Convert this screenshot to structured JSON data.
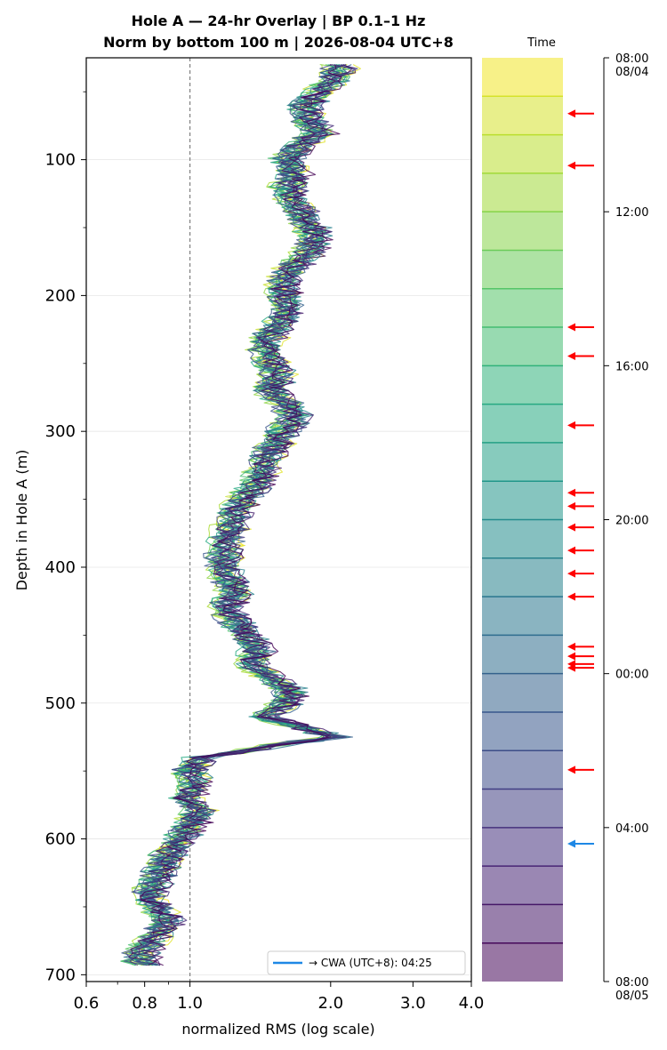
{
  "title": {
    "line1": "Hole A — 24-hr Overlay  |  BP 0.1–1 Hz",
    "line2": "Norm by bottom 100 m  |  2026-08-04 UTC+8"
  },
  "colors": {
    "reference_line": "#808080",
    "arrow": "#ff0000",
    "cwa_arrow": "#1e88e5",
    "colormap": [
      "#440154",
      "#472c7a",
      "#3b528b",
      "#2c728e",
      "#21918c",
      "#28ae80",
      "#5ec962",
      "#addc30",
      "#fde725"
    ]
  },
  "chart_data": [
    {
      "type": "line",
      "xlabel": "normalized RMS  (log scale)",
      "ylabel": "Depth in Hole A (m)",
      "xscale": "log",
      "xlim": [
        0.6,
        4.0
      ],
      "ylim": [
        705,
        25
      ],
      "xticks": [
        "0.6",
        "0.8",
        "1.0",
        "2.0",
        "3.0",
        "4.0"
      ],
      "xtick_values": [
        0.6,
        0.8,
        1.0,
        2.0,
        3.0,
        4.0
      ],
      "yticks": [
        "100",
        "200",
        "300",
        "400",
        "500",
        "600",
        "700"
      ],
      "ytick_values": [
        100,
        200,
        300,
        400,
        500,
        600,
        700
      ],
      "grid": "horizontal",
      "reference_line_x": 1.0,
      "series_count": 24,
      "color_by": "time",
      "median_profile": {
        "depth": [
          30,
          40,
          50,
          60,
          70,
          80,
          90,
          100,
          110,
          120,
          130,
          140,
          150,
          160,
          170,
          180,
          190,
          200,
          210,
          220,
          230,
          240,
          250,
          260,
          270,
          280,
          290,
          300,
          310,
          320,
          330,
          340,
          350,
          360,
          370,
          380,
          390,
          400,
          410,
          420,
          430,
          440,
          450,
          460,
          470,
          480,
          490,
          500,
          510,
          520,
          525,
          530,
          540,
          550,
          560,
          570,
          580,
          590,
          600,
          610,
          620,
          630,
          640,
          650,
          660,
          670,
          680,
          690,
          695
        ],
        "rms": [
          2.1,
          2.05,
          1.9,
          1.75,
          1.8,
          1.9,
          1.7,
          1.6,
          1.68,
          1.62,
          1.66,
          1.75,
          1.82,
          1.85,
          1.78,
          1.65,
          1.58,
          1.6,
          1.62,
          1.55,
          1.48,
          1.45,
          1.5,
          1.55,
          1.48,
          1.62,
          1.68,
          1.58,
          1.52,
          1.45,
          1.42,
          1.38,
          1.3,
          1.25,
          1.22,
          1.2,
          1.18,
          1.18,
          1.22,
          1.25,
          1.2,
          1.25,
          1.32,
          1.4,
          1.35,
          1.45,
          1.65,
          1.62,
          1.45,
          1.8,
          2.05,
          1.6,
          1.05,
          1.0,
          1.02,
          0.98,
          1.05,
          1.0,
          0.95,
          0.9,
          0.88,
          0.85,
          0.82,
          0.84,
          0.9,
          0.85,
          0.8,
          0.78,
          0.82
        ]
      },
      "legend": {
        "position": "lower right",
        "entries": [
          "→ CWA (UTC+8): 04:25"
        ]
      }
    },
    {
      "type": "heatmap",
      "title": "Time",
      "colorbar_ticks": [
        "08:00\n08/04",
        "12:00",
        "16:00",
        "20:00",
        "00:00",
        "04:00",
        "08:00\n08/05"
      ],
      "time_range_hours": [
        8,
        32
      ],
      "tick_hours": [
        8,
        12,
        16,
        20,
        24,
        28,
        32
      ],
      "band_hours": 1,
      "event_arrows_hours": [
        9.45,
        10.8,
        15.0,
        15.75,
        17.55,
        19.3,
        19.65,
        20.2,
        20.8,
        21.4,
        22.0,
        23.3,
        23.55,
        23.75,
        23.85,
        26.5
      ],
      "cwa_arrow_hours": 28.42
    }
  ]
}
